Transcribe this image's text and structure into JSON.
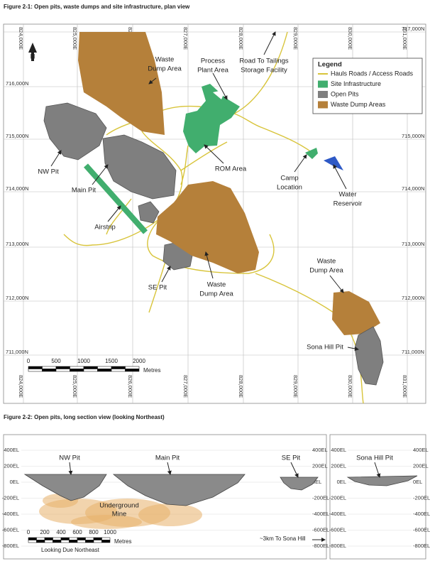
{
  "figure1": {
    "title": "Figure 2-1: Open pits, waste dumps and site infrastructure, plan view",
    "eastings": [
      "824,000E",
      "825,000E",
      "826,000E",
      "827,000E",
      "828,000E",
      "829,000E",
      "830,000E",
      "831,000E"
    ],
    "northings": [
      "717,000N",
      "716,000N",
      "715,000N",
      "714,000N",
      "713,000N",
      "712,000N",
      "711,000N"
    ],
    "north": "N",
    "labels": [
      [
        "Waste",
        "Dump Area"
      ],
      [
        "Process",
        "Plant Area"
      ],
      [
        "Road To Tailings",
        "Storage Facility"
      ],
      [
        "NW Pit"
      ],
      [
        "Main Pit"
      ],
      [
        "Airstrip"
      ],
      [
        "ROM Area"
      ],
      [
        "Camp",
        "Location"
      ],
      [
        "Water",
        "Reservoir"
      ],
      [
        "SE Pit"
      ],
      [
        "Waste",
        "Dump Area"
      ],
      [
        "Waste",
        "Dump Area"
      ],
      [
        "Sona Hill Pit"
      ]
    ],
    "legend": {
      "title": "Legend",
      "items": [
        "Hauls Roads / Access Roads",
        "Site Infrastructure",
        "Open Pits",
        "Waste Dump Areas"
      ]
    },
    "scale": {
      "ticks": [
        "0",
        "500",
        "1000",
        "1500",
        "2000"
      ],
      "unit": "Metres"
    }
  },
  "figure2": {
    "title": "Figure 2-2: Open pits, long section view (looking Northeast)",
    "elevations": [
      "400EL",
      "200EL",
      "0EL",
      "-200EL",
      "-400EL",
      "-600EL",
      "-800EL"
    ],
    "labels": [
      [
        "NW Pit"
      ],
      [
        "Main Pit"
      ],
      [
        "SE Pit"
      ],
      [
        "Sona Hill Pit"
      ],
      [
        "Underground",
        "Mine"
      ]
    ],
    "scale": {
      "ticks": [
        "0",
        "200",
        "400",
        "600",
        "800",
        "1000"
      ],
      "unit": "Metres"
    },
    "view": "Looking Due Northeast",
    "note": "~3km To Sona Hill"
  }
}
